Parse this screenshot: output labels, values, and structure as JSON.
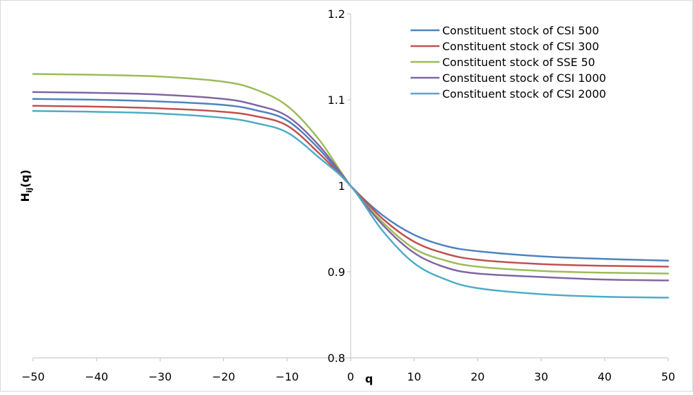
{
  "chart_data": {
    "type": "line",
    "title": "",
    "xlabel": "q",
    "ylabel": {
      "main": "H",
      "sub": "ij",
      "suffix": "(q)"
    },
    "xlim": [
      -50,
      50
    ],
    "ylim": [
      0.8,
      1.2
    ],
    "x_ticks": [
      -50,
      -40,
      -30,
      -20,
      -10,
      0,
      10,
      20,
      30,
      40,
      50
    ],
    "x_tick_labels": [
      "−50",
      "−40",
      "−30",
      "−20",
      "−10",
      "0",
      "10",
      "20",
      "30",
      "40",
      "50"
    ],
    "y_ticks": [
      0.8,
      0.9,
      1.0,
      1.1,
      1.2
    ],
    "y_tick_labels": [
      "0.8",
      "0.9",
      "1",
      "1.1",
      "1.2"
    ],
    "grid": false,
    "legend_position": "top-right",
    "x": [
      -50,
      -40,
      -30,
      -20,
      -15,
      -10,
      -5,
      0,
      5,
      10,
      15,
      20,
      30,
      40,
      50
    ],
    "series": [
      {
        "name": "Constituent stock of CSI 500",
        "color": "#4F81BD",
        "values": [
          1.101,
          1.1,
          1.098,
          1.094,
          1.088,
          1.076,
          1.043,
          1.0,
          0.966,
          0.943,
          0.93,
          0.924,
          0.918,
          0.915,
          0.913
        ]
      },
      {
        "name": "Constituent stock of CSI 300",
        "color": "#C0504D",
        "values": [
          1.093,
          1.092,
          1.09,
          1.086,
          1.081,
          1.07,
          1.038,
          1.0,
          0.962,
          0.935,
          0.921,
          0.914,
          0.909,
          0.907,
          0.906
        ]
      },
      {
        "name": "Constituent stock of SSE 50",
        "color": "#9BBB59",
        "values": [
          1.13,
          1.129,
          1.127,
          1.121,
          1.112,
          1.093,
          1.054,
          1.0,
          0.958,
          0.927,
          0.913,
          0.906,
          0.901,
          0.899,
          0.898
        ]
      },
      {
        "name": "Constituent stock of CSI 1000",
        "color": "#8064A2",
        "values": [
          1.109,
          1.108,
          1.106,
          1.101,
          1.094,
          1.081,
          1.047,
          1.0,
          0.955,
          0.922,
          0.905,
          0.898,
          0.894,
          0.891,
          0.89
        ]
      },
      {
        "name": "Constituent stock of CSI 2000",
        "color": "#4BACC6",
        "values": [
          1.087,
          1.086,
          1.084,
          1.079,
          1.073,
          1.062,
          1.033,
          1.0,
          0.948,
          0.91,
          0.891,
          0.881,
          0.874,
          0.871,
          0.87
        ]
      }
    ]
  },
  "colors": {
    "axis": "#BFBFBF",
    "frame": "#D9D9D9",
    "text": "#000000"
  }
}
